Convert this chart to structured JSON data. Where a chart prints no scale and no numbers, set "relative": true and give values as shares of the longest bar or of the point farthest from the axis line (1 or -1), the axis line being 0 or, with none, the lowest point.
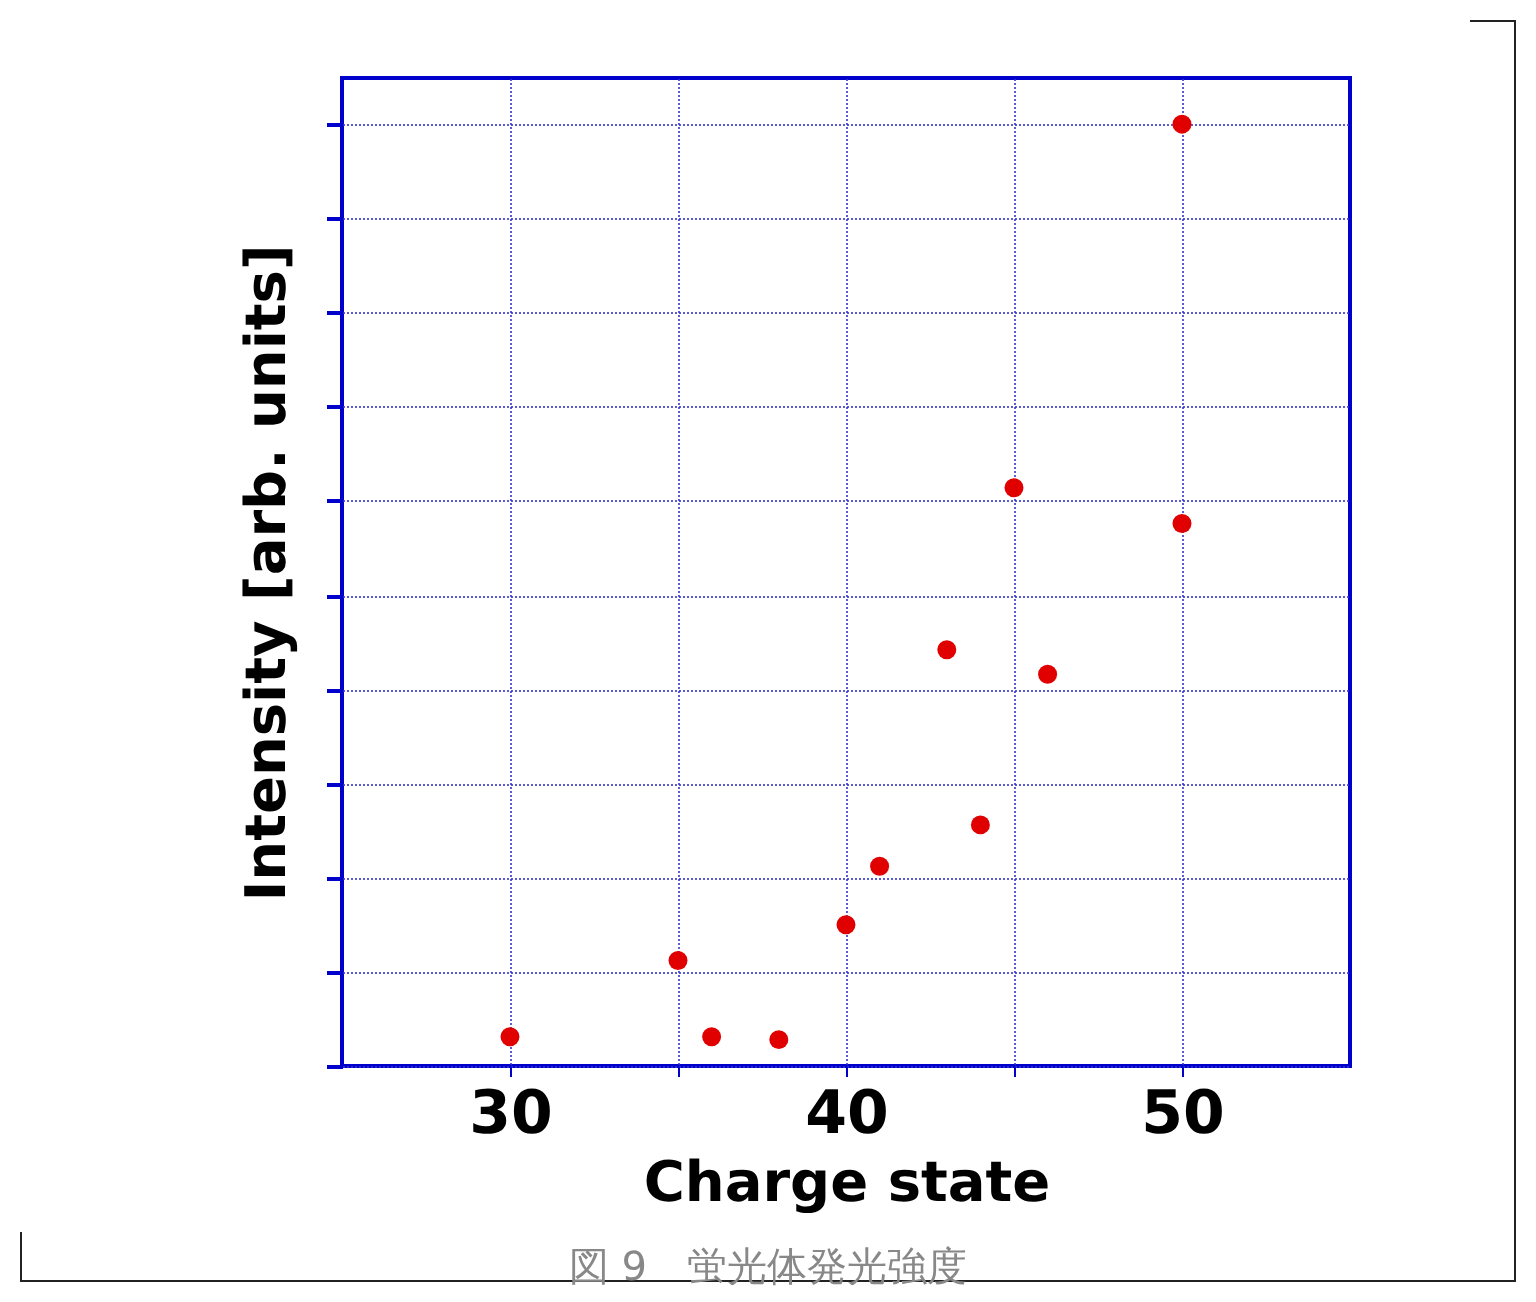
{
  "chart_data": {
    "type": "scatter",
    "relative": true,
    "xlabel": "Charge state",
    "ylabel": "Intensity [arb. units]",
    "annotations": [
      "図 9　蛍光体発光強度"
    ],
    "x": [
      30,
      35,
      36,
      38,
      40,
      41,
      43,
      44,
      45,
      46,
      50,
      50
    ],
    "series": [
      {
        "color": "#e00000",
        "values": [
          0.031,
          0.112,
          0.031,
          0.028,
          0.15,
          0.212,
          0.442,
          0.256,
          0.614,
          0.416,
          0.576,
          1
        ]
      }
    ],
    "xlim": [
      25,
      55
    ],
    "xticks": [
      30,
      {
        "value": 35,
        "label": null
      },
      40,
      {
        "value": 45,
        "label": null
      },
      50
    ],
    "grid": true,
    "marker": "circle"
  }
}
